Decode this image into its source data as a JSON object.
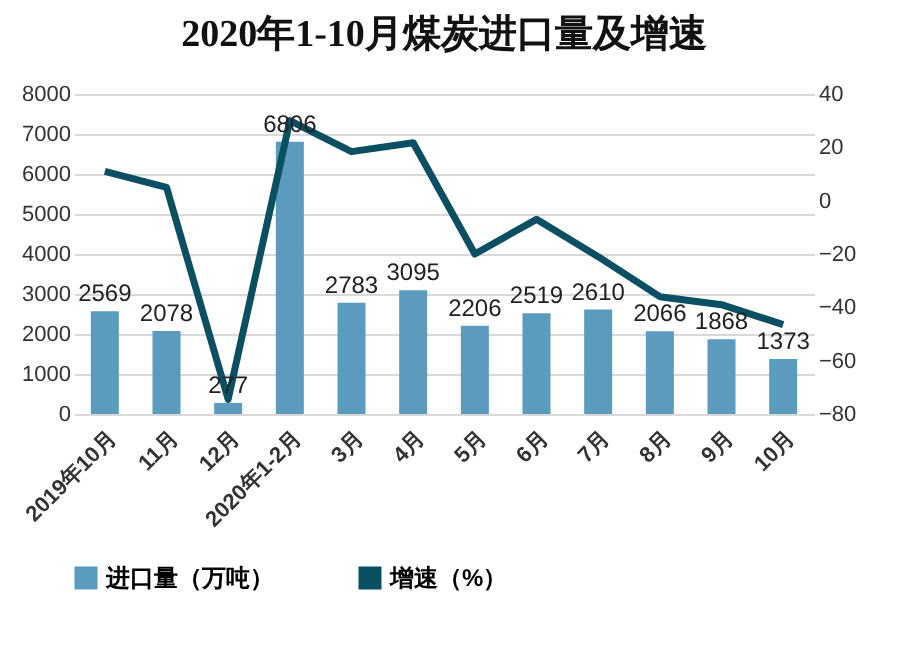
{
  "chart_data": {
    "type": "bar",
    "title": "2020年1-10月煤炭进口量及增速",
    "categories": [
      "2019年10月",
      "11月",
      "12月",
      "2020年1-2月",
      "3月",
      "4月",
      "5月",
      "6月",
      "7月",
      "8月",
      "9月",
      "10月"
    ],
    "series": [
      {
        "name": "进口量（万吨）",
        "color": "#5b9bbd",
        "values": [
          2569,
          2078,
          277,
          6806,
          2783,
          3095,
          2206,
          2519,
          2610,
          2066,
          1868,
          1373
        ],
        "value_labels": [
          "2569",
          "2078",
          "277",
          "6806",
          "2783",
          "3095",
          "2206",
          "2519",
          "2610",
          "2066",
          "1868",
          "1373"
        ]
      },
      {
        "name": "增速（%）",
        "type": "line",
        "axis": "y2",
        "color": "#0b4f63",
        "values": [
          11,
          5,
          -74.5,
          30,
          18.4,
          21.7,
          -20,
          -7,
          -21,
          -36,
          -39,
          -46.5
        ]
      }
    ],
    "ylim": [
      0,
      8000
    ],
    "yticks": [
      0,
      1000,
      2000,
      3000,
      4000,
      5000,
      6000,
      7000,
      8000
    ],
    "y2lim": [
      -80,
      40
    ],
    "y2ticks": [
      -80,
      -60,
      -40,
      -20,
      0,
      20,
      40
    ],
    "grid": "y",
    "legend": "bottom"
  }
}
